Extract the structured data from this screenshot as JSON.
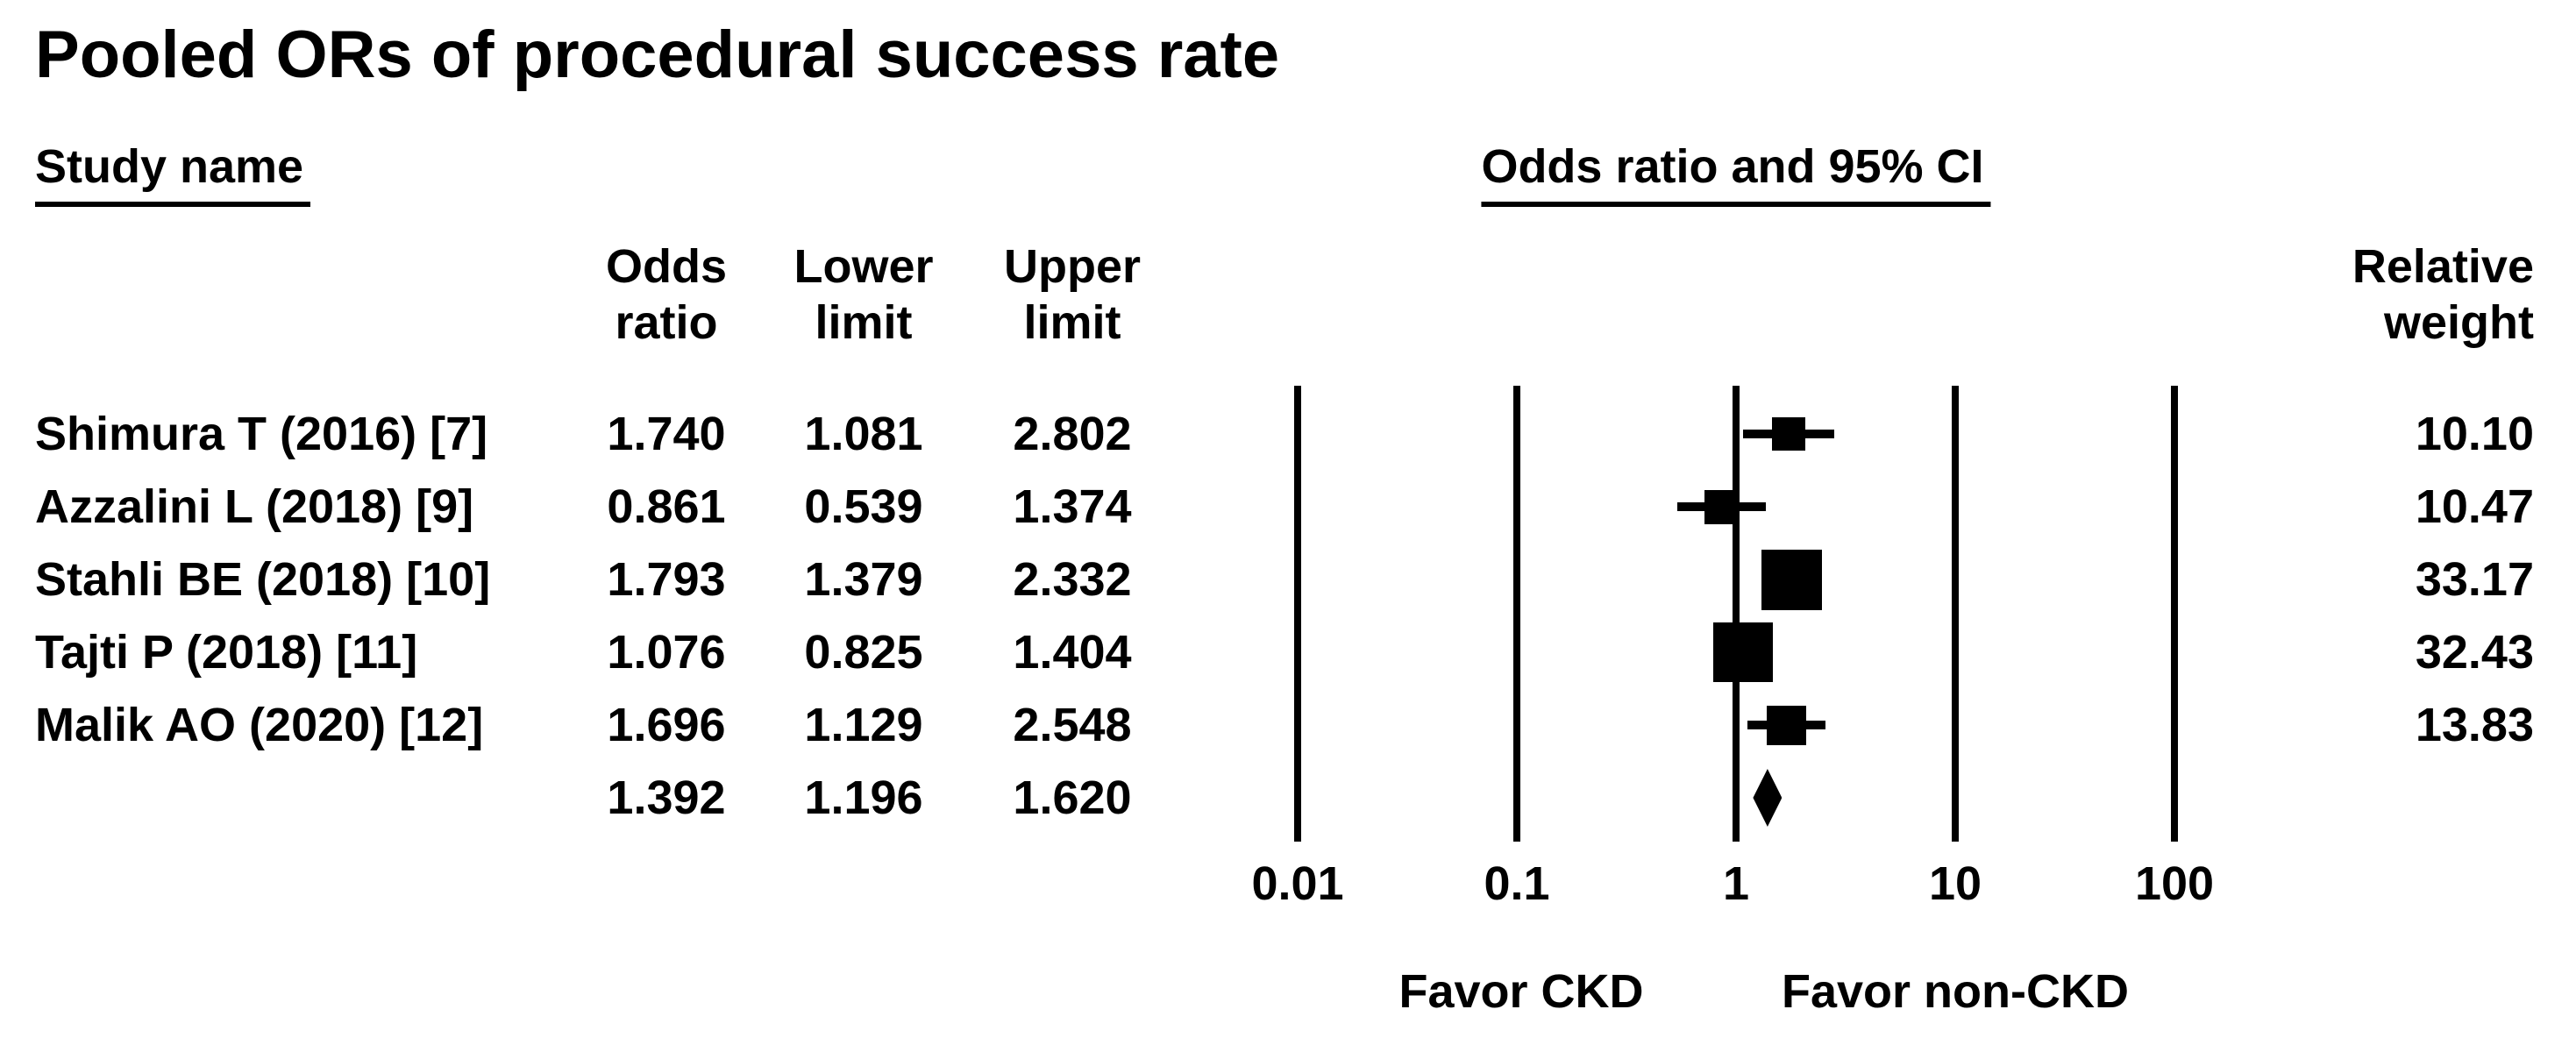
{
  "title": "Pooled ORs of procedural success rate",
  "left_header": "Study name",
  "plot_header": "Odds ratio and 95% CI",
  "col_headers": {
    "odds_ratio": "Odds\nratio",
    "lower_limit": "Lower\nlimit",
    "upper_limit": "Upper\nlimit",
    "relative_weight": "Relative\nweight"
  },
  "colors": {
    "ink": "#000000",
    "background": "#ffffff"
  },
  "chart_data": {
    "type": "forest",
    "x_axis": {
      "scale": "log",
      "min": 0.01,
      "max": 100,
      "ticks": [
        0.01,
        0.1,
        1,
        10,
        100
      ],
      "tick_labels": [
        "0.01",
        "0.1",
        "1",
        "10",
        "100"
      ]
    },
    "direction_labels": {
      "left": "Favor CKD",
      "right": "Favor non-CKD"
    },
    "studies": [
      {
        "name": "Shimura T (2016) [7]",
        "odds_ratio": 1.74,
        "lower_limit": 1.081,
        "upper_limit": 2.802,
        "relative_weight": 10.1
      },
      {
        "name": "Azzalini L (2018) [9]",
        "odds_ratio": 0.861,
        "lower_limit": 0.539,
        "upper_limit": 1.374,
        "relative_weight": 10.47
      },
      {
        "name": "Stahli BE (2018) [10]",
        "odds_ratio": 1.793,
        "lower_limit": 1.379,
        "upper_limit": 2.332,
        "relative_weight": 33.17
      },
      {
        "name": "Tajti P (2018) [11]",
        "odds_ratio": 1.076,
        "lower_limit": 0.825,
        "upper_limit": 1.404,
        "relative_weight": 32.43
      },
      {
        "name": "Malik AO (2020) [12]",
        "odds_ratio": 1.696,
        "lower_limit": 1.129,
        "upper_limit": 2.548,
        "relative_weight": 13.83
      }
    ],
    "pooled": {
      "odds_ratio": 1.392,
      "lower_limit": 1.196,
      "upper_limit": 1.62
    }
  }
}
